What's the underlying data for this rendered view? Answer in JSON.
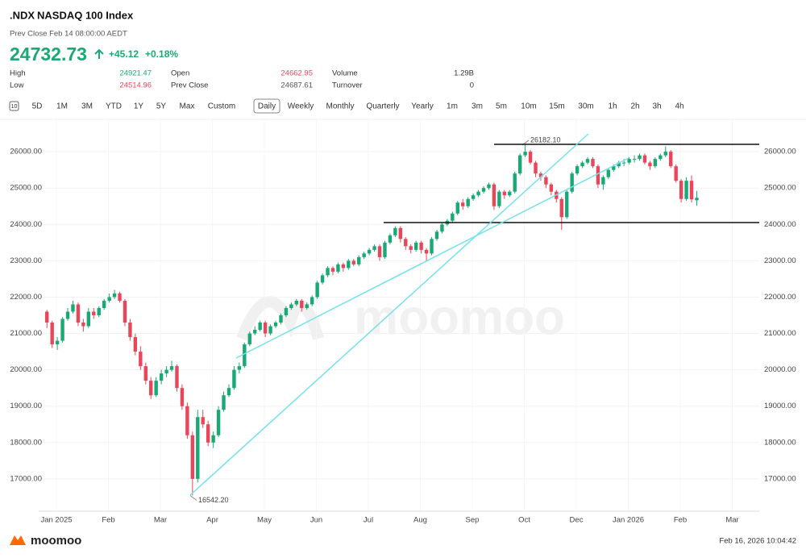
{
  "header": {
    "symbol": ".NDX",
    "name": "NASDAQ 100 Index",
    "prev_close_time": "Prev Close Feb 14 08:00:00 AEDT",
    "price": "24732.73",
    "change": "+45.12",
    "change_pct": "+0.18%",
    "stats": [
      {
        "label": "High",
        "value": "24921.47",
        "color": "#19a974"
      },
      {
        "label": "Open",
        "value": "24662.95",
        "color": "#e8465a"
      },
      {
        "label": "Volume",
        "value": "1.29B",
        "color": "#333333"
      },
      {
        "label": "Low",
        "value": "24514.96",
        "color": "#e8465a"
      },
      {
        "label": "Prev Close",
        "value": "24687.61",
        "color": "#555555"
      },
      {
        "label": "Turnover",
        "value": "0",
        "color": "#333333"
      }
    ]
  },
  "tabs": {
    "icon_label": "10",
    "items": [
      "5D",
      "1M",
      "3M",
      "YTD",
      "1Y",
      "5Y",
      "Max",
      "Custom",
      "Daily",
      "Weekly",
      "Monthly",
      "Quarterly",
      "Yearly",
      "1m",
      "3m",
      "5m",
      "10m",
      "15m",
      "30m",
      "1h",
      "2h",
      "3h",
      "4h"
    ],
    "selected": "Daily"
  },
  "chart_data": {
    "type": "candlestick",
    "up_color": "#19a974",
    "down_color": "#e8465a",
    "grid": true,
    "ylim": [
      16110,
      26890
    ],
    "yticks": [
      {
        "value": 17000,
        "label": "17000.00"
      },
      {
        "value": 18000,
        "label": "18000.00"
      },
      {
        "value": 19000,
        "label": "19000.00"
      },
      {
        "value": 20000,
        "label": "20000.00"
      },
      {
        "value": 21000,
        "label": "21000.00"
      },
      {
        "value": 22000,
        "label": "22000.00"
      },
      {
        "value": 23000,
        "label": "23000.00"
      },
      {
        "value": 24000,
        "label": "24000.00"
      },
      {
        "value": 25000,
        "label": "25000.00"
      },
      {
        "value": 26000,
        "label": "26000.00"
      }
    ],
    "annotations": [
      {
        "value": 26182.1,
        "label": "26182.10"
      },
      {
        "value": 16542.2,
        "label": "16542.20"
      }
    ],
    "months": [
      {
        "label": "Jan 2025",
        "candles": [
          [
            21600,
            21650,
            21150,
            21300
          ],
          [
            21300,
            21350,
            20600,
            20700
          ],
          [
            20700,
            20900,
            20550,
            20800
          ],
          [
            20800,
            21450,
            20750,
            21400
          ],
          [
            21400,
            21700,
            21350,
            21600
          ],
          [
            21600,
            21900,
            21550,
            21800
          ],
          [
            21800,
            21850,
            21200,
            21300
          ],
          [
            21300,
            21400,
            21050,
            21200
          ],
          [
            21200,
            21700,
            21150,
            21600
          ],
          [
            21600,
            21700,
            21400,
            21500
          ]
        ]
      },
      {
        "label": "Feb",
        "candles": [
          [
            21500,
            21750,
            21450,
            21700
          ],
          [
            21700,
            21950,
            21650,
            21900
          ],
          [
            21900,
            22100,
            21850,
            22000
          ],
          [
            22000,
            22200,
            21950,
            22100
          ],
          [
            22100,
            22150,
            21850,
            21900
          ],
          [
            21900,
            21950,
            21200,
            21300
          ],
          [
            21300,
            21400,
            20800,
            20900
          ],
          [
            20900,
            21000,
            20400,
            20500
          ],
          [
            20500,
            20650,
            20000,
            20100
          ],
          [
            20100,
            20200,
            19600,
            19700
          ]
        ]
      },
      {
        "label": "Mar",
        "candles": [
          [
            19700,
            19800,
            19200,
            19300
          ],
          [
            19300,
            19800,
            19250,
            19700
          ],
          [
            19700,
            20000,
            19600,
            19900
          ],
          [
            19900,
            20100,
            19800,
            20000
          ],
          [
            20000,
            20250,
            19950,
            20100
          ],
          [
            20100,
            20150,
            19400,
            19500
          ],
          [
            19500,
            19600,
            18900,
            19000
          ],
          [
            19000,
            19100,
            18100,
            18200
          ],
          [
            18200,
            18300,
            16542.2,
            17000
          ],
          [
            17000,
            18900,
            16900,
            18700
          ]
        ]
      },
      {
        "label": "Apr",
        "candles": [
          [
            18700,
            18900,
            18400,
            18500
          ],
          [
            18500,
            18600,
            17900,
            18000
          ],
          [
            18000,
            18300,
            17850,
            18200
          ],
          [
            18200,
            19000,
            18150,
            18900
          ],
          [
            18900,
            19400,
            18850,
            19300
          ],
          [
            19300,
            19600,
            19250,
            19500
          ],
          [
            19500,
            20100,
            19450,
            20000
          ],
          [
            20000,
            20200,
            19900,
            20100
          ],
          [
            20100,
            20750,
            20050,
            20700
          ],
          [
            20700,
            21050,
            20650,
            21000
          ]
        ]
      },
      {
        "label": "May",
        "candles": [
          [
            21000,
            21200,
            20950,
            21100
          ],
          [
            21100,
            21350,
            21050,
            21300
          ],
          [
            21300,
            21350,
            20900,
            21000
          ],
          [
            21000,
            21250,
            20950,
            21200
          ],
          [
            21200,
            21350,
            21150,
            21300
          ],
          [
            21300,
            21550,
            21250,
            21500
          ],
          [
            21500,
            21750,
            21450,
            21700
          ],
          [
            21700,
            21850,
            21650,
            21800
          ],
          [
            21800,
            21950,
            21750,
            21900
          ],
          [
            21900,
            21950,
            21600,
            21700
          ]
        ]
      },
      {
        "label": "Jun",
        "candles": [
          [
            21700,
            21850,
            21650,
            21800
          ],
          [
            21800,
            22050,
            21750,
            22000
          ],
          [
            22000,
            22450,
            21950,
            22400
          ],
          [
            22400,
            22650,
            22350,
            22600
          ],
          [
            22600,
            22850,
            22550,
            22800
          ],
          [
            22800,
            22850,
            22600,
            22700
          ],
          [
            22700,
            22950,
            22650,
            22900
          ],
          [
            22900,
            22950,
            22700,
            22800
          ],
          [
            22800,
            23050,
            22750,
            23000
          ],
          [
            23000,
            23050,
            22850,
            22900
          ]
        ]
      },
      {
        "label": "Jul",
        "candles": [
          [
            22900,
            23150,
            22850,
            23100
          ],
          [
            23100,
            23250,
            23050,
            23200
          ],
          [
            23200,
            23350,
            23150,
            23300
          ],
          [
            23300,
            23450,
            23250,
            23400
          ],
          [
            23400,
            23450,
            23000,
            23100
          ],
          [
            23100,
            23550,
            23050,
            23500
          ],
          [
            23500,
            23750,
            23450,
            23700
          ],
          [
            23700,
            23950,
            23650,
            23900
          ],
          [
            23900,
            23950,
            23500,
            23600
          ],
          [
            23600,
            23650,
            23300,
            23400
          ]
        ]
      },
      {
        "label": "Aug",
        "candles": [
          [
            23400,
            23450,
            23200,
            23300
          ],
          [
            23300,
            23550,
            23250,
            23500
          ],
          [
            23500,
            23550,
            23200,
            23300
          ],
          [
            23300,
            23350,
            23000,
            23200
          ],
          [
            23200,
            23650,
            23150,
            23600
          ],
          [
            23600,
            23850,
            23550,
            23800
          ],
          [
            23800,
            24050,
            23750,
            24000
          ],
          [
            24000,
            24150,
            23950,
            24100
          ],
          [
            24100,
            24350,
            24050,
            24300
          ],
          [
            24300,
            24650,
            24250,
            24600
          ]
        ]
      },
      {
        "label": "Sep",
        "candles": [
          [
            24600,
            24700,
            24400,
            24500
          ],
          [
            24500,
            24750,
            24450,
            24700
          ],
          [
            24700,
            24850,
            24650,
            24800
          ],
          [
            24800,
            24950,
            24750,
            24900
          ],
          [
            24900,
            25050,
            24850,
            25000
          ],
          [
            25000,
            25150,
            24950,
            25100
          ],
          [
            25100,
            25150,
            24400,
            24500
          ],
          [
            24500,
            24950,
            24450,
            24900
          ],
          [
            24900,
            24950,
            24700,
            24800
          ],
          [
            24800,
            24950,
            24750,
            24900
          ]
        ]
      },
      {
        "label": "Oct",
        "candles": [
          [
            24900,
            25450,
            24850,
            25400
          ],
          [
            25400,
            25950,
            25350,
            25900
          ],
          [
            25900,
            26182.1,
            25850,
            26000
          ],
          [
            26000,
            26050,
            25650,
            25700
          ],
          [
            25700,
            25750,
            25300,
            25400
          ],
          [
            25400,
            25450,
            25200,
            25300
          ],
          [
            25300,
            25350,
            25000,
            25100
          ],
          [
            25100,
            25150,
            24800,
            24900
          ],
          [
            24900,
            24950,
            24600,
            24700
          ],
          [
            24700,
            24750,
            23850,
            24200
          ]
        ]
      },
      {
        "label": "Dec",
        "candles": [
          [
            24200,
            24950,
            24150,
            24900
          ],
          [
            24900,
            25450,
            24850,
            25400
          ],
          [
            25400,
            25650,
            25350,
            25600
          ],
          [
            25600,
            25750,
            25550,
            25700
          ],
          [
            25700,
            25850,
            25650,
            25800
          ],
          [
            25800,
            25850,
            25550,
            25600
          ],
          [
            25600,
            25650,
            25000,
            25100
          ],
          [
            25100,
            25350,
            24950,
            25300
          ],
          [
            25300,
            25550,
            25250,
            25500
          ],
          [
            25500,
            25650,
            25450,
            25600
          ]
        ]
      },
      {
        "label": "Jan 2026",
        "candles": [
          [
            25600,
            25750,
            25550,
            25700
          ],
          [
            25700,
            25800,
            25600,
            25700
          ],
          [
            25700,
            25850,
            25650,
            25800
          ],
          [
            25800,
            25900,
            25700,
            25800
          ],
          [
            25800,
            25950,
            25750,
            25900
          ],
          [
            25900,
            25950,
            25650,
            25700
          ],
          [
            25700,
            25750,
            25500,
            25600
          ],
          [
            25600,
            25850,
            25550,
            25800
          ],
          [
            25800,
            25950,
            25750,
            25900
          ],
          [
            25900,
            26150,
            25850,
            26000
          ]
        ]
      },
      {
        "label": "Feb",
        "candles": [
          [
            26000,
            26050,
            25550,
            25600
          ],
          [
            25600,
            25650,
            25150,
            25200
          ],
          [
            25200,
            25250,
            24600,
            24700
          ],
          [
            24700,
            25300,
            24650,
            25200
          ],
          [
            25200,
            25350,
            24600,
            24687.61
          ],
          [
            24662.95,
            24921.47,
            24514.96,
            24732.73
          ]
        ]
      },
      {
        "label": "Mar",
        "candles": []
      }
    ]
  },
  "watermark": "moomoo",
  "footer": {
    "brand": "moomoo",
    "timestamp": "Feb 16, 2026 10:04:42"
  }
}
